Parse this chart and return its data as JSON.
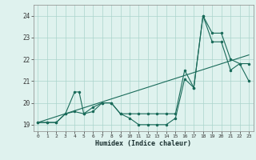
{
  "line1_x": [
    0,
    1,
    2,
    3,
    4,
    5,
    6,
    7,
    8,
    9,
    10,
    11,
    12,
    13,
    14,
    15,
    16,
    17,
    18,
    19,
    20,
    21,
    22,
    23
  ],
  "line1_y": [
    19.1,
    19.1,
    19.1,
    19.5,
    19.6,
    19.5,
    19.6,
    20.0,
    20.0,
    19.5,
    19.3,
    19.0,
    19.0,
    19.0,
    19.0,
    19.3,
    21.1,
    20.7,
    24.0,
    22.8,
    22.8,
    21.5,
    21.8,
    21.0
  ],
  "line2_x": [
    0,
    1,
    2,
    3,
    4,
    4.5,
    5,
    6,
    7,
    8,
    9,
    10,
    11,
    12,
    13,
    14,
    15,
    16,
    17,
    18,
    19,
    20,
    21,
    22,
    23
  ],
  "line2_y": [
    19.1,
    19.1,
    19.1,
    19.5,
    20.5,
    20.5,
    19.5,
    19.8,
    20.0,
    20.0,
    19.5,
    19.5,
    19.5,
    19.5,
    19.5,
    19.5,
    19.5,
    21.5,
    20.7,
    24.0,
    23.2,
    23.2,
    22.0,
    21.8,
    21.8
  ],
  "line3_x": [
    0,
    23
  ],
  "line3_y": [
    19.1,
    22.2
  ],
  "color": "#1a6b5a",
  "bg_color": "#dff2ee",
  "grid_color": "#aad4cc",
  "xlabel": "Humidex (Indice chaleur)",
  "ylim": [
    18.7,
    24.5
  ],
  "xlim": [
    -0.5,
    23.5
  ],
  "yticks": [
    19,
    20,
    21,
    22,
    23,
    24
  ],
  "xticks": [
    0,
    1,
    2,
    3,
    4,
    5,
    6,
    7,
    8,
    9,
    10,
    11,
    12,
    13,
    14,
    15,
    16,
    17,
    18,
    19,
    20,
    21,
    22,
    23
  ]
}
